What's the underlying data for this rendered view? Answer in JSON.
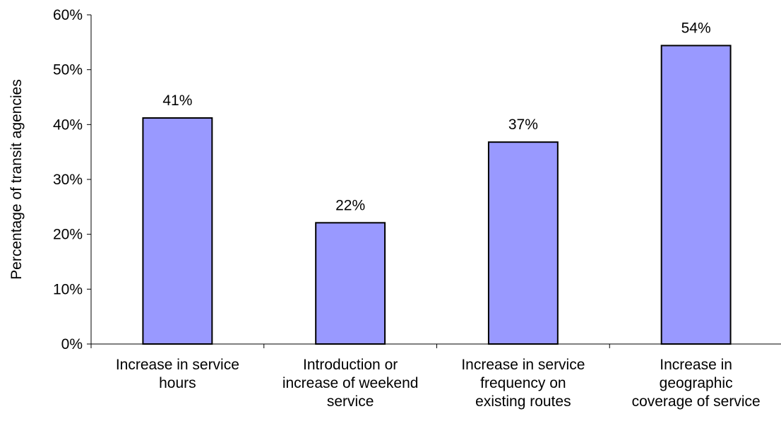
{
  "chart_data": {
    "type": "bar",
    "title": "",
    "xlabel": "",
    "ylabel": "Percentage of transit agencies",
    "ylim": [
      0,
      60
    ],
    "y_ticks": [
      0,
      10,
      20,
      30,
      40,
      50,
      60
    ],
    "y_tick_labels": [
      "0%",
      "10%",
      "20%",
      "30%",
      "40%",
      "50%",
      "60%"
    ],
    "grid": false,
    "legend": "none",
    "categories": [
      [
        "Increase in service",
        "hours"
      ],
      [
        "Introduction or",
        "increase of weekend",
        "service"
      ],
      [
        "Increase in service",
        "frequency on",
        "existing routes"
      ],
      [
        "Increase in",
        "geographic",
        "coverage of service"
      ]
    ],
    "values": [
      41.2,
      22.1,
      36.8,
      54.4
    ],
    "data_labels": [
      "41%",
      "22%",
      "37%",
      "54%"
    ],
    "colors": {
      "bar_fill": "#9999ff",
      "bar_stroke": "#000000",
      "axis": "#000000"
    }
  }
}
